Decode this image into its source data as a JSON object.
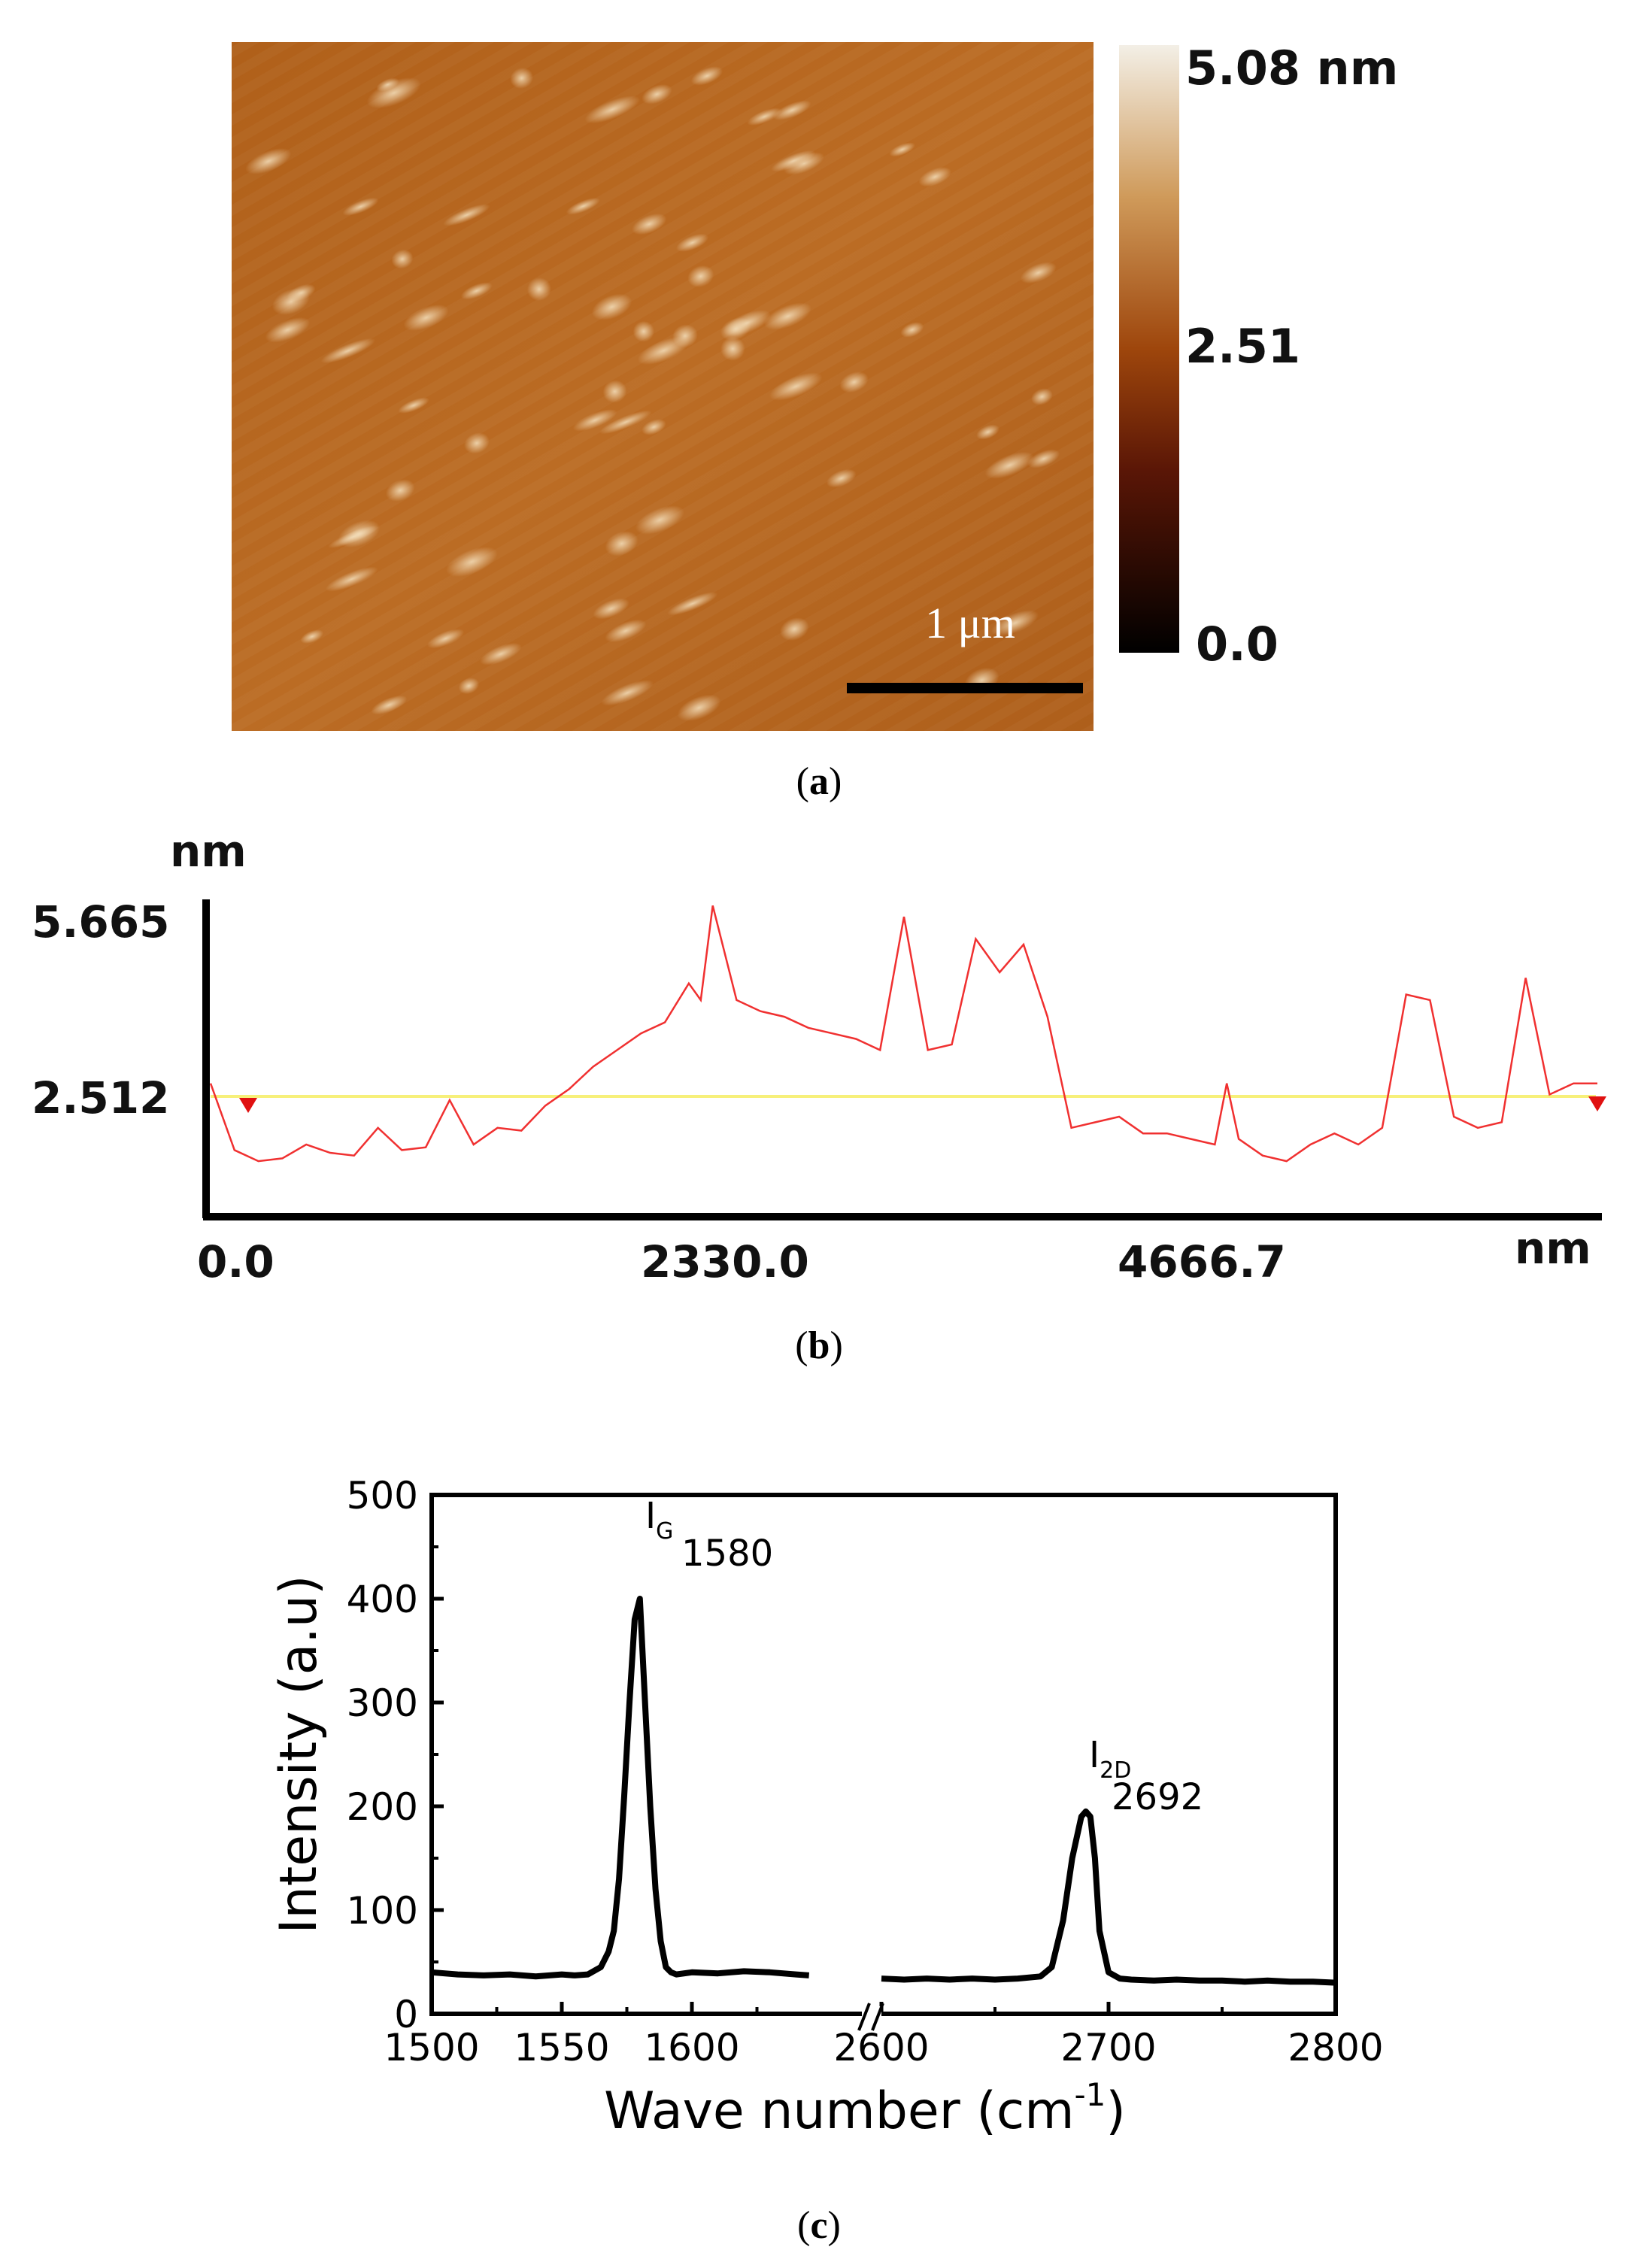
{
  "panel_a": {
    "colorbar_max": "5.08 nm",
    "colorbar_mid": "2.51",
    "colorbar_min": "0.0",
    "scale_bar_label": "1 μm",
    "colors": {
      "low": "#000000",
      "mid": "#a24a0a",
      "high": "#f3efe6",
      "surface": "#b5661e"
    }
  },
  "panel_b": {
    "y_unit": "nm",
    "y_tick_top": "5.665",
    "y_tick_mid": "2.512",
    "x_ticks": [
      "0.0",
      "2330.0",
      "4666.7"
    ],
    "x_unit": "nm",
    "colors": {
      "profile": "#f03030",
      "reference": "#f7f07a",
      "marker": "#e01010"
    }
  },
  "panel_c": {
    "xlabel": "Wave number (cm",
    "xlabel_sup": "-1",
    "xlabel_close": ")",
    "ylabel": "Intensity (a.u)",
    "y_ticks": [
      "0",
      "100",
      "200",
      "300",
      "400",
      "500"
    ],
    "x_ticks_left": [
      "1500",
      "1550",
      "1600",
      "2600"
    ],
    "x_ticks_right": [
      "2700",
      "2800"
    ],
    "peak_g_label": "I",
    "peak_g_sub": "G",
    "peak_g_value": "1580",
    "peak_2d_label": "I",
    "peak_2d_sub": "2D",
    "peak_2d_value": "2692"
  },
  "captions": {
    "a": {
      "open": "(",
      "letter": "a",
      "close": ")"
    },
    "b": {
      "open": "(",
      "letter": "b",
      "close": ")"
    },
    "c": {
      "open": "(",
      "letter": "c",
      "close": ")"
    }
  },
  "chart_data": [
    {
      "type": "heatmap",
      "title": "",
      "colorbar_range": [
        0.0,
        5.08
      ],
      "colorbar_unit": "nm",
      "scale_bar": "1 μm"
    },
    {
      "type": "line",
      "xlabel": "nm",
      "ylabel": "nm",
      "xlim": [
        0,
        5800
      ],
      "ylim": [
        0,
        6.2
      ],
      "reference_line": 2.512,
      "x": [
        0,
        100,
        200,
        300,
        400,
        500,
        600,
        700,
        800,
        900,
        1000,
        1100,
        1200,
        1300,
        1400,
        1500,
        1600,
        1700,
        1800,
        1900,
        2000,
        2050,
        2100,
        2200,
        2300,
        2400,
        2500,
        2600,
        2700,
        2800,
        2900,
        3000,
        3100,
        3200,
        3300,
        3400,
        3500,
        3600,
        3700,
        3800,
        3900,
        4000,
        4100,
        4200,
        4250,
        4300,
        4400,
        4500,
        4600,
        4700,
        4800,
        4900,
        5000,
        5100,
        5200,
        5300,
        5400,
        5500,
        5600,
        5700,
        5800
      ],
      "y": [
        2.4,
        1.2,
        1.0,
        1.05,
        1.3,
        1.15,
        1.1,
        1.6,
        1.2,
        1.25,
        2.1,
        1.3,
        1.6,
        1.55,
        2.0,
        2.3,
        2.7,
        3.0,
        3.3,
        3.5,
        4.2,
        3.9,
        5.6,
        3.9,
        3.7,
        3.6,
        3.4,
        3.3,
        3.2,
        3.0,
        5.4,
        3.0,
        3.1,
        5.0,
        4.4,
        4.9,
        3.6,
        1.6,
        1.7,
        1.8,
        1.5,
        1.5,
        1.4,
        1.3,
        2.4,
        1.4,
        1.1,
        1.0,
        1.3,
        1.5,
        1.3,
        1.6,
        4.0,
        3.9,
        1.8,
        1.6,
        1.7,
        4.3,
        2.2,
        2.4,
        2.4
      ],
      "x_ticks": [
        0.0,
        2330.0,
        4666.7
      ],
      "y_ticks": [
        2.512,
        5.665
      ]
    },
    {
      "type": "line",
      "xlabel": "Wave number (cm-1)",
      "ylabel": "Intensity (a.u)",
      "xlim": [
        1500,
        2800
      ],
      "x_axis_break": [
        1645,
        2600
      ],
      "ylim": [
        0,
        500
      ],
      "series": [
        {
          "x": [
            1500,
            1510,
            1520,
            1530,
            1540,
            1550,
            1555,
            1560,
            1565,
            1568,
            1570,
            1572,
            1574,
            1576,
            1578,
            1580,
            1582,
            1584,
            1586,
            1588,
            1590,
            1592,
            1594,
            1600,
            1610,
            1620,
            1630,
            1640,
            1645,
            2600,
            2610,
            2620,
            2630,
            2640,
            2650,
            2660,
            2670,
            2675,
            2680,
            2684,
            2688,
            2690,
            2692,
            2694,
            2696,
            2700,
            2705,
            2710,
            2720,
            2730,
            2740,
            2750,
            2760,
            2770,
            2780,
            2790,
            2800
          ],
          "y": [
            40,
            38,
            37,
            38,
            36,
            38,
            37,
            38,
            45,
            60,
            80,
            130,
            210,
            300,
            380,
            400,
            300,
            200,
            120,
            70,
            45,
            40,
            38,
            40,
            39,
            41,
            40,
            38,
            37,
            34,
            33,
            34,
            33,
            34,
            33,
            34,
            36,
            45,
            90,
            150,
            190,
            195,
            190,
            150,
            80,
            40,
            34,
            33,
            32,
            33,
            32,
            32,
            31,
            32,
            31,
            31,
            30
          ]
        }
      ],
      "annotations": [
        {
          "text": "IG 1580",
          "x": 1580,
          "y": 400
        },
        {
          "text": "I2D 2692",
          "x": 2692,
          "y": 195
        }
      ],
      "x_ticks": [
        1500,
        1550,
        1600,
        2600,
        2700,
        2800
      ],
      "y_ticks": [
        0,
        100,
        200,
        300,
        400,
        500
      ]
    }
  ]
}
